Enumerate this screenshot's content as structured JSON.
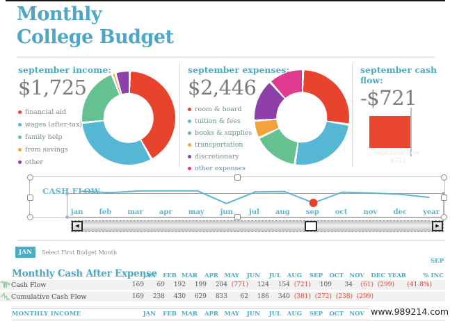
{
  "title": {
    "line1": "Monthly",
    "line2": "College Budget"
  },
  "colors": {
    "accent_teal": "#4BACC6",
    "title_teal": "#4EA6C6",
    "red": "#E8432D",
    "blue": "#55B7D4",
    "green": "#66C191",
    "orange": "#F5A23C",
    "purple": "#8E3FA8",
    "pink": "#E0398F",
    "gray_amount": "#7B7B7B",
    "negative": "#E0432D",
    "sparkline": "#86C79A"
  },
  "chart_data": [
    {
      "type": "donut",
      "id": "income",
      "title": "september income:",
      "total_label": "$1,725",
      "slices": [
        {
          "label": "financial aid",
          "color": "#E8432D",
          "pct": 41.5
        },
        {
          "label": "wages (after-tax)",
          "color": "#55B7D4",
          "pct": 31.5
        },
        {
          "label": "family help",
          "color": "#66C191",
          "pct": 20.8
        },
        {
          "label": "from savings",
          "color": "#F5A23C",
          "pct": 1.2
        },
        {
          "label": "other",
          "color": "#8E3FA8",
          "pct": 5.0
        }
      ]
    },
    {
      "type": "donut",
      "id": "expenses",
      "title": "september expenses:",
      "total_label": "$2,446",
      "slices": [
        {
          "label": "room & board",
          "color": "#E8432D",
          "pct": 27
        },
        {
          "label": "tuition & fees",
          "color": "#55B7D4",
          "pct": 25
        },
        {
          "label": "books & supplies",
          "color": "#66C191",
          "pct": 15.5
        },
        {
          "label": "transportation",
          "color": "#F5A23C",
          "pct": 6
        },
        {
          "label": "discretionary",
          "color": "#8E3FA8",
          "pct": 14.5
        },
        {
          "label": "other expenses",
          "color": "#E0398F",
          "pct": 12
        }
      ]
    },
    {
      "type": "bar",
      "id": "cashflow_bar",
      "title": "september cash flow:",
      "total_label": "-$721",
      "value": -721,
      "color": "#E8462E",
      "note_line1": "sept cash flow",
      "note_line2": "-$721"
    },
    {
      "type": "line",
      "id": "cashflow_line",
      "label": "CASH FLOW",
      "x": [
        "jan",
        "feb",
        "mar",
        "apr",
        "may",
        "jun",
        "jul",
        "aug",
        "sep",
        "oct",
        "nov",
        "dec",
        "year"
      ],
      "values": [
        169,
        69,
        192,
        199,
        204,
        -771,
        124,
        154,
        -721,
        109,
        34,
        -61,
        -299
      ],
      "marker": {
        "x": "sep",
        "index": 8,
        "color": "#E8432D"
      },
      "line_color": "#5BB6D6"
    }
  ],
  "scrollbar": {
    "left_arrow": "◀",
    "right_arrow": "▶"
  },
  "month_selector": {
    "badge": "JAN",
    "label": "Select First Budget Month"
  },
  "table": {
    "super_header": "SEP",
    "heading": "Monthly Cash After Expense",
    "columns": [
      "JAN",
      "FEB",
      "MAR",
      "APR",
      "MAY",
      "JUN",
      "JUL",
      "AUG",
      "SEP",
      "OCT",
      "NOV",
      "DEC",
      "YEAR",
      "% INC"
    ],
    "rows": [
      {
        "label": "Cash Flow",
        "cells": [
          "169",
          "69",
          "192",
          "199",
          "204",
          "(771)",
          "124",
          "154",
          "(721)",
          "109",
          "34",
          "(61)",
          "(299)",
          "(41.8%)"
        ]
      },
      {
        "label": "Cumulative Cash Flow",
        "cells": [
          "169",
          "238",
          "430",
          "629",
          "833",
          "62",
          "186",
          "340",
          "(381)",
          "(272)",
          "(238)",
          "(299)",
          "",
          ""
        ]
      }
    ],
    "section2": {
      "heading": "MONTHLY INCOME",
      "columns": [
        "JAN",
        "FEB",
        "MAR",
        "APR",
        "MAY",
        "JUN",
        "JUL",
        "AUG",
        "SEP",
        "OCT",
        "NOV"
      ]
    }
  },
  "watermark": "www.989214.com"
}
